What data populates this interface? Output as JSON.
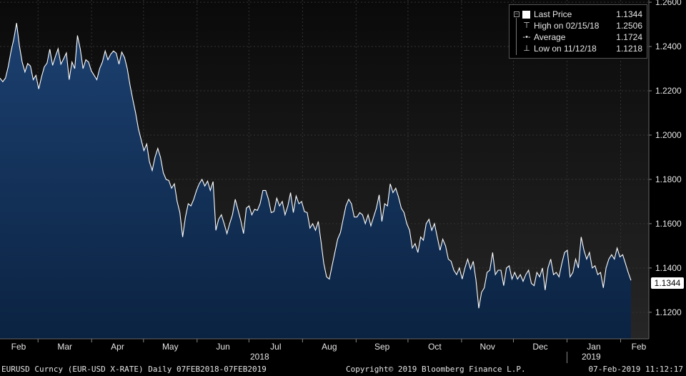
{
  "chart_data": {
    "type": "area",
    "title": "",
    "xlabel": "",
    "ylabel": "",
    "ylim": [
      1.108,
      1.261
    ],
    "y_ticks": [
      "1.2600",
      "1.2400",
      "1.2200",
      "1.2000",
      "1.1800",
      "1.1600",
      "1.1400",
      "1.1200"
    ],
    "y_tick_values": [
      1.26,
      1.24,
      1.22,
      1.2,
      1.18,
      1.16,
      1.14,
      1.12
    ],
    "x_month_labels": [
      "Feb",
      "Mar",
      "Apr",
      "May",
      "Jun",
      "Jul",
      "Aug",
      "Sep",
      "Oct",
      "Nov",
      "Dec",
      "Jan",
      "Feb"
    ],
    "x_year_labels": [
      "2018",
      "2019"
    ],
    "grid": true,
    "legend_position": "top-right",
    "series": [
      {
        "name": "Last Price",
        "x_range": [
          "2018-02-07",
          "2019-02-07"
        ],
        "values": [
          1.2257,
          1.2241,
          1.2258,
          1.231,
          1.238,
          1.2435,
          1.2506,
          1.2405,
          1.233,
          1.2285,
          1.2323,
          1.2312,
          1.225,
          1.227,
          1.2208,
          1.2263,
          1.2308,
          1.2325,
          1.2388,
          1.2315,
          1.2355,
          1.239,
          1.232,
          1.2345,
          1.2371,
          1.225,
          1.233,
          1.23,
          1.245,
          1.239,
          1.23,
          1.234,
          1.233,
          1.229,
          1.227,
          1.225,
          1.23,
          1.233,
          1.238,
          1.234,
          1.2365,
          1.238,
          1.237,
          1.232,
          1.2375,
          1.235,
          1.23,
          1.2225,
          1.216,
          1.21,
          1.203,
          1.198,
          1.193,
          1.196,
          1.188,
          1.184,
          1.19,
          1.194,
          1.19,
          1.183,
          1.18,
          1.1795,
          1.176,
          1.178,
          1.17,
          1.165,
          1.154,
          1.163,
          1.169,
          1.168,
          1.171,
          1.175,
          1.178,
          1.18,
          1.177,
          1.1792,
          1.175,
          1.179,
          1.157,
          1.162,
          1.164,
          1.16,
          1.1555,
          1.16,
          1.164,
          1.171,
          1.1662,
          1.1615,
          1.1555,
          1.167,
          1.168,
          1.164,
          1.1665,
          1.166,
          1.169,
          1.175,
          1.175,
          1.171,
          1.165,
          1.1655,
          1.1715,
          1.168,
          1.17,
          1.164,
          1.168,
          1.174,
          1.165,
          1.1725,
          1.169,
          1.17,
          1.1655,
          1.165,
          1.158,
          1.16,
          1.157,
          1.161,
          1.152,
          1.142,
          1.136,
          1.135,
          1.141,
          1.147,
          1.153,
          1.156,
          1.162,
          1.168,
          1.171,
          1.169,
          1.163,
          1.163,
          1.165,
          1.164,
          1.16,
          1.164,
          1.159,
          1.163,
          1.167,
          1.173,
          1.161,
          1.169,
          1.168,
          1.178,
          1.174,
          1.176,
          1.172,
          1.167,
          1.165,
          1.16,
          1.157,
          1.149,
          1.151,
          1.147,
          1.154,
          1.1525,
          1.16,
          1.162,
          1.157,
          1.16,
          1.154,
          1.148,
          1.153,
          1.15,
          1.144,
          1.143,
          1.139,
          1.137,
          1.14,
          1.135,
          1.14,
          1.144,
          1.1395,
          1.143,
          1.1345,
          1.1218,
          1.129,
          1.131,
          1.138,
          1.139,
          1.147,
          1.137,
          1.139,
          1.139,
          1.132,
          1.14,
          1.141,
          1.135,
          1.138,
          1.135,
          1.137,
          1.134,
          1.137,
          1.139,
          1.133,
          1.132,
          1.138,
          1.136,
          1.14,
          1.13,
          1.14,
          1.144,
          1.137,
          1.138,
          1.136,
          1.142,
          1.147,
          1.148,
          1.136,
          1.138,
          1.144,
          1.14,
          1.154,
          1.148,
          1.144,
          1.147,
          1.14,
          1.141,
          1.137,
          1.138,
          1.131,
          1.14,
          1.144,
          1.146,
          1.144,
          1.149,
          1.145,
          1.146,
          1.142,
          1.138,
          1.1344
        ]
      }
    ],
    "last_value_tag": "1.1344"
  },
  "legend": {
    "last_price_label": "Last Price",
    "last_price_value": "1.1344",
    "high_label": "High on 02/15/18",
    "high_value": "1.2506",
    "average_label": "Average",
    "average_value": "1.1724",
    "low_label": "Low on 11/12/18",
    "low_value": "1.1218"
  },
  "footer": {
    "left": "EURUSD Curncy (EUR-USD X-RATE)  Daily 07FEB2018-07FEB2019",
    "center": "Copyright© 2019 Bloomberg Finance L.P.",
    "right": "07-Feb-2019 11:12:17"
  },
  "colors": {
    "background": "#000000",
    "area_fill_bottom": "#0d2a4d",
    "area_fill_top": "#1a3c65",
    "line": "#ffffff",
    "grid": "#2e2e2e"
  }
}
